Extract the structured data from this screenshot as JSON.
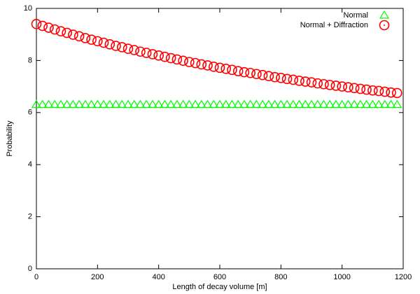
{
  "chart_data": {
    "type": "scatter",
    "xlabel": "Length of decay volume [m]",
    "ylabel": "Probability",
    "x": [
      0,
      20,
      40,
      60,
      80,
      100,
      120,
      140,
      160,
      180,
      200,
      220,
      240,
      260,
      280,
      300,
      320,
      340,
      360,
      380,
      400,
      420,
      440,
      460,
      480,
      500,
      520,
      540,
      560,
      580,
      600,
      620,
      640,
      660,
      680,
      700,
      720,
      740,
      760,
      780,
      800,
      820,
      840,
      860,
      880,
      900,
      920,
      940,
      960,
      980,
      1000,
      1020,
      1040,
      1060,
      1080,
      1100,
      1120,
      1140,
      1160,
      1180
    ],
    "series": [
      {
        "name": "Normal",
        "color": "#00ff00",
        "marker": "triangle",
        "values": [
          6.3,
          6.3,
          6.3,
          6.3,
          6.3,
          6.3,
          6.3,
          6.3,
          6.3,
          6.3,
          6.3,
          6.3,
          6.3,
          6.3,
          6.3,
          6.3,
          6.3,
          6.3,
          6.3,
          6.3,
          6.3,
          6.3,
          6.3,
          6.3,
          6.3,
          6.3,
          6.3,
          6.3,
          6.3,
          6.3,
          6.3,
          6.3,
          6.3,
          6.3,
          6.3,
          6.3,
          6.3,
          6.3,
          6.3,
          6.3,
          6.3,
          6.3,
          6.3,
          6.3,
          6.3,
          6.3,
          6.3,
          6.3,
          6.3,
          6.3,
          6.3,
          6.3,
          6.3,
          6.3,
          6.3,
          6.3,
          6.3,
          6.3,
          6.3,
          6.3
        ]
      },
      {
        "name": "Normal + Diffraction",
        "color": "#ff0000",
        "marker": "circle",
        "values": [
          9.4,
          9.33,
          9.26,
          9.19,
          9.12,
          9.06,
          8.99,
          8.93,
          8.86,
          8.8,
          8.74,
          8.68,
          8.62,
          8.56,
          8.51,
          8.45,
          8.4,
          8.34,
          8.29,
          8.24,
          8.19,
          8.14,
          8.09,
          8.04,
          7.99,
          7.94,
          7.9,
          7.85,
          7.81,
          7.76,
          7.72,
          7.68,
          7.64,
          7.59,
          7.55,
          7.52,
          7.48,
          7.44,
          7.4,
          7.36,
          7.33,
          7.29,
          7.26,
          7.22,
          7.19,
          7.16,
          7.12,
          7.09,
          7.06,
          7.03,
          7.0,
          6.97,
          6.94,
          6.91,
          6.88,
          6.85,
          6.83,
          6.8,
          6.77,
          6.75
        ]
      }
    ],
    "xlim": [
      0,
      1200
    ],
    "xticks": [
      0,
      200,
      400,
      600,
      800,
      1000,
      1200
    ],
    "ylim": [
      0,
      10
    ],
    "yticks": [
      0,
      2,
      4,
      6,
      8,
      10
    ],
    "legend": "top-right",
    "grid": false
  }
}
